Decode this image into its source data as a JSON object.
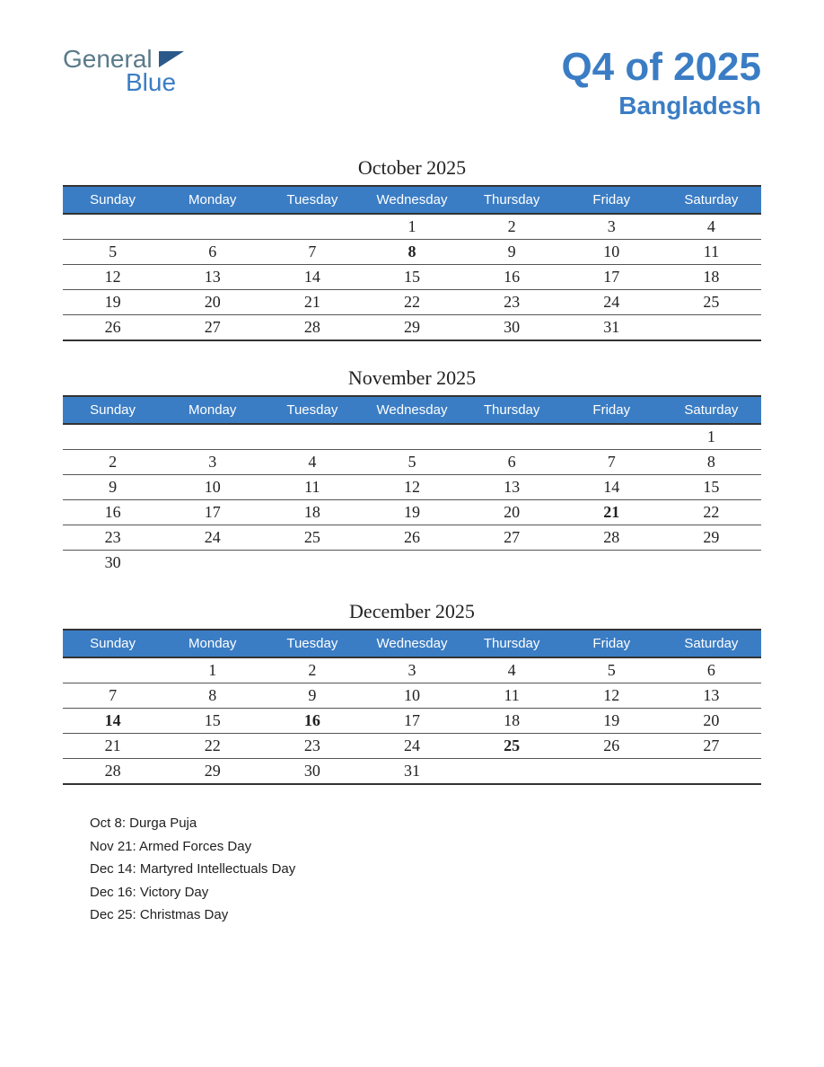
{
  "logo": {
    "line1": "General",
    "line2": "Blue"
  },
  "title": "Q4 of 2025",
  "subtitle": "Bangladesh",
  "colors": {
    "header_bg": "#3b7dc4",
    "header_text": "#ffffff",
    "title_color": "#3b7dc4",
    "holiday_color": "#c43030",
    "text_color": "#222222",
    "border_color": "#333333",
    "background": "#ffffff"
  },
  "day_headers": [
    "Sunday",
    "Monday",
    "Tuesday",
    "Wednesday",
    "Thursday",
    "Friday",
    "Saturday"
  ],
  "months": [
    {
      "title": "October 2025",
      "weeks": [
        [
          "",
          "",
          "",
          "1",
          "2",
          "3",
          "4"
        ],
        [
          "5",
          "6",
          "7",
          "8",
          "9",
          "10",
          "11"
        ],
        [
          "12",
          "13",
          "14",
          "15",
          "16",
          "17",
          "18"
        ],
        [
          "19",
          "20",
          "21",
          "22",
          "23",
          "24",
          "25"
        ],
        [
          "26",
          "27",
          "28",
          "29",
          "30",
          "31",
          ""
        ]
      ],
      "holidays": [
        "8"
      ]
    },
    {
      "title": "November 2025",
      "weeks": [
        [
          "",
          "",
          "",
          "",
          "",
          "",
          "1"
        ],
        [
          "2",
          "3",
          "4",
          "5",
          "6",
          "7",
          "8"
        ],
        [
          "9",
          "10",
          "11",
          "12",
          "13",
          "14",
          "15"
        ],
        [
          "16",
          "17",
          "18",
          "19",
          "20",
          "21",
          "22"
        ],
        [
          "23",
          "24",
          "25",
          "26",
          "27",
          "28",
          "29"
        ],
        [
          "30",
          "",
          "",
          "",
          "",
          "",
          ""
        ]
      ],
      "holidays": [
        "21"
      ],
      "last_row_noborder": true
    },
    {
      "title": "December 2025",
      "weeks": [
        [
          "",
          "1",
          "2",
          "3",
          "4",
          "5",
          "6"
        ],
        [
          "7",
          "8",
          "9",
          "10",
          "11",
          "12",
          "13"
        ],
        [
          "14",
          "15",
          "16",
          "17",
          "18",
          "19",
          "20"
        ],
        [
          "21",
          "22",
          "23",
          "24",
          "25",
          "26",
          "27"
        ],
        [
          "28",
          "29",
          "30",
          "31",
          "",
          "",
          ""
        ]
      ],
      "holidays": [
        "14",
        "16",
        "25"
      ]
    }
  ],
  "holiday_list": [
    "Oct 8: Durga Puja",
    "Nov 21: Armed Forces Day",
    "Dec 14: Martyred Intellectuals Day",
    "Dec 16: Victory Day",
    "Dec 25: Christmas Day"
  ]
}
